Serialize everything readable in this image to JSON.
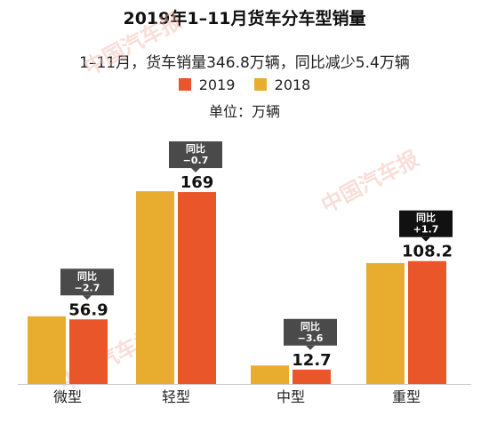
{
  "title": "2019年1–11月货车分车型销量",
  "subtitle": "1–11月，货车销量346.8万辆，同比减少5.4万辆",
  "unit_label": "单位：万辆",
  "watermark_text": "中国汽车报",
  "colors": {
    "series_2019": "#e8562a",
    "series_2018": "#e8ad2e",
    "callout_bg": "#4a4a4a",
    "callout_bg_dark": "#111111",
    "callout_text": "#ffffff"
  },
  "chart_data": {
    "type": "bar",
    "categories": [
      "微型",
      "轻型",
      "中型",
      "重型"
    ],
    "series": [
      {
        "name": "2019",
        "values": [
          56.9,
          169,
          12.7,
          108.2
        ]
      },
      {
        "name": "2018",
        "values": [
          59.6,
          169.7,
          16.3,
          106.5
        ]
      }
    ],
    "data_labels": [
      "56.9",
      "169",
      "12.7",
      "108.2"
    ],
    "yoy_labels": [
      "同比\n−2.7",
      "同比\n−0.7",
      "同比\n−3.6",
      "同比\n+1.7"
    ],
    "ylim": [
      0,
      180
    ],
    "grid": false,
    "legend_position": "top-center"
  }
}
